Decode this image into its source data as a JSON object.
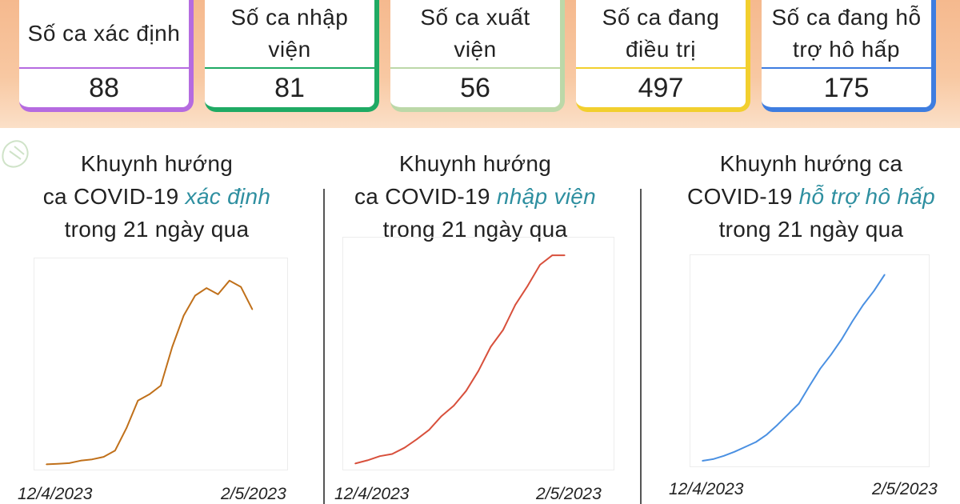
{
  "stats": [
    {
      "label": "Số ca xác định",
      "value": "88",
      "color": "#b56be0"
    },
    {
      "label": "Số ca nhập viện",
      "value": "81",
      "color": "#1faa64"
    },
    {
      "label": "Số ca xuất viện",
      "value": "56",
      "color": "#bcd8a8"
    },
    {
      "label": "Số ca đang điều trị",
      "value": "497",
      "color": "#f2cf2e"
    },
    {
      "label": "Số ca đang hỗ trợ hô hấp",
      "value": "175",
      "color": "#3e7de0"
    }
  ],
  "charts": [
    {
      "title_line1": "Khuynh hướng",
      "title_line2_prefix": "ca COVID-19 ",
      "title_highlight": "xác định",
      "title_line2_suffix": "",
      "title_line3": "trong 21 ngày qua",
      "start_date": "12/4/2023",
      "end_date": "2/5/2023"
    },
    {
      "title_line1": "Khuynh hướng",
      "title_line2_prefix": "ca COVID-19 ",
      "title_highlight": "nhập viện",
      "title_line2_suffix": "",
      "title_line3": "trong 21 ngày qua",
      "start_date": "12/4/2023",
      "end_date": "2/5/2023"
    },
    {
      "title_line1": "Khuynh hướng ca",
      "title_line2_prefix": "COVID-19 ",
      "title_highlight": "hỗ trợ hô hấp",
      "title_line2_suffix": "",
      "title_line3": "trong 21 ngày qua",
      "start_date": "12/4/2023",
      "end_date": "2/5/2023"
    }
  ],
  "chart_data": [
    {
      "type": "line",
      "x": [
        "12/4/2023",
        "13/4/2023",
        "14/4/2023",
        "15/4/2023",
        "16/4/2023",
        "17/4/2023",
        "18/4/2023",
        "19/4/2023",
        "20/4/2023",
        "21/4/2023",
        "22/4/2023",
        "23/4/2023",
        "24/4/2023",
        "25/4/2023",
        "26/4/2023",
        "27/4/2023",
        "28/4/2023",
        "29/4/2023",
        "30/4/2023",
        "1/5/2023",
        "2/5/2023"
      ],
      "values": [
        1,
        1.5,
        2,
        4,
        5,
        7,
        12,
        30,
        52,
        57,
        64,
        95,
        120,
        136,
        142,
        137,
        148,
        143,
        125,
        null,
        null
      ],
      "color": "#c0701a",
      "xlabel": "",
      "ylabel": ""
    },
    {
      "type": "line",
      "x": [
        "12/4/2023",
        "13/4/2023",
        "14/4/2023",
        "15/4/2023",
        "16/4/2023",
        "17/4/2023",
        "18/4/2023",
        "19/4/2023",
        "20/4/2023",
        "21/4/2023",
        "22/4/2023",
        "23/4/2023",
        "24/4/2023",
        "25/4/2023",
        "26/4/2023",
        "27/4/2023",
        "28/4/2023",
        "29/4/2023",
        "30/4/2023",
        "1/5/2023",
        "2/5/2023"
      ],
      "values": [
        2,
        5,
        9,
        11,
        17,
        25,
        34,
        47,
        57,
        71,
        90,
        113,
        129,
        153,
        171,
        191,
        200,
        200,
        null,
        null,
        null
      ],
      "color": "#d8503c",
      "xlabel": "",
      "ylabel": ""
    },
    {
      "type": "line",
      "x": [
        "12/4/2023",
        "13/4/2023",
        "14/4/2023",
        "15/4/2023",
        "16/4/2023",
        "17/4/2023",
        "18/4/2023",
        "19/4/2023",
        "20/4/2023",
        "21/4/2023",
        "22/4/2023",
        "23/4/2023",
        "24/4/2023",
        "25/4/2023",
        "26/4/2023",
        "27/4/2023",
        "28/4/2023",
        "29/4/2023",
        "30/4/2023",
        "1/5/2023",
        "2/5/2023"
      ],
      "values": [
        2,
        4,
        8,
        13,
        19,
        25,
        34,
        46,
        59,
        72,
        94,
        115,
        132,
        151,
        173,
        193,
        210,
        230,
        null,
        null,
        null
      ],
      "color": "#4a90e2",
      "xlabel": "",
      "ylabel": ""
    }
  ]
}
